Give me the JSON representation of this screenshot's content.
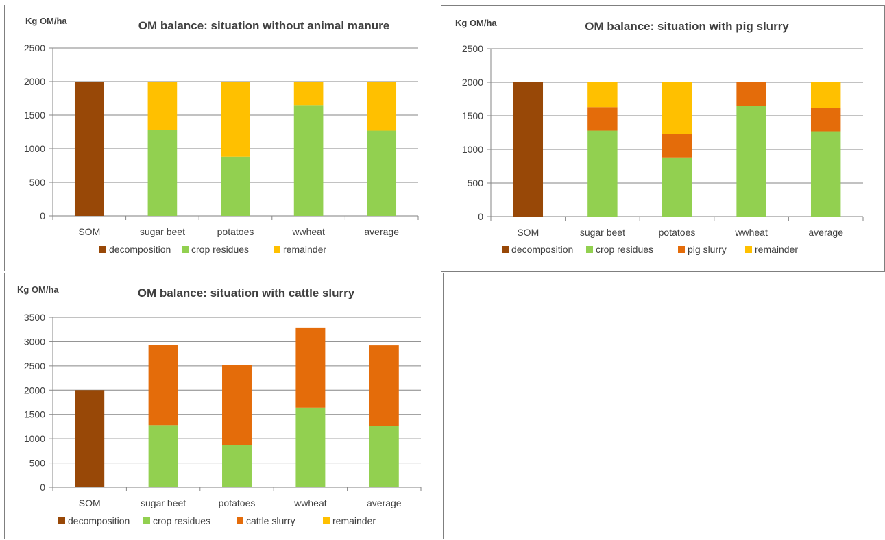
{
  "colors": {
    "decomposition": "#984807",
    "crop residues": "#92d050",
    "pig slurry": "#e46c0a",
    "cattle slurry": "#e46c0a",
    "remainder": "#ffc000"
  },
  "chart_data": [
    {
      "type": "bar",
      "stacked": true,
      "title": "OM balance: situation without animal manure",
      "ylabel": "Kg OM/ha",
      "categories": [
        "SOM",
        "sugar beet",
        "potatoes",
        "wwheat",
        "average"
      ],
      "ylim": [
        0,
        2500
      ],
      "yticks": [
        0,
        500,
        1000,
        1500,
        2000,
        2500
      ],
      "grid": true,
      "legend": "bottom",
      "series": [
        {
          "name": "decomposition",
          "values": [
            2000,
            0,
            0,
            0,
            0
          ]
        },
        {
          "name": "crop residues",
          "values": [
            0,
            1280,
            880,
            1650,
            1270
          ]
        },
        {
          "name": "remainder",
          "values": [
            0,
            720,
            1120,
            350,
            730
          ]
        }
      ]
    },
    {
      "type": "bar",
      "stacked": true,
      "title": "OM balance: situation with pig slurry",
      "ylabel": "Kg OM/ha",
      "categories": [
        "SOM",
        "sugar beet",
        "potatoes",
        "wwheat",
        "average"
      ],
      "ylim": [
        0,
        2500
      ],
      "yticks": [
        0,
        500,
        1000,
        1500,
        2000,
        2500
      ],
      "grid": true,
      "legend": "bottom",
      "series": [
        {
          "name": "decomposition",
          "values": [
            2000,
            0,
            0,
            0,
            0
          ]
        },
        {
          "name": "crop residues",
          "values": [
            0,
            1280,
            880,
            1650,
            1270
          ]
        },
        {
          "name": "pig slurry",
          "values": [
            0,
            350,
            350,
            350,
            345
          ]
        },
        {
          "name": "remainder",
          "values": [
            0,
            370,
            770,
            0,
            385
          ]
        }
      ]
    },
    {
      "type": "bar",
      "stacked": true,
      "title": "OM balance: situation with cattle slurry",
      "ylabel": "Kg OM/ha",
      "categories": [
        "SOM",
        "sugar beet",
        "potatoes",
        "wwheat",
        "average"
      ],
      "ylim": [
        0,
        3500
      ],
      "yticks": [
        0,
        500,
        1000,
        1500,
        2000,
        2500,
        3000,
        3500
      ],
      "grid": true,
      "legend": "bottom",
      "series": [
        {
          "name": "decomposition",
          "values": [
            2000,
            0,
            0,
            0,
            0
          ]
        },
        {
          "name": "crop residues",
          "values": [
            0,
            1280,
            870,
            1640,
            1270
          ]
        },
        {
          "name": "cattle slurry",
          "values": [
            0,
            1650,
            1650,
            1650,
            1650
          ]
        },
        {
          "name": "remainder",
          "values": [
            0,
            0,
            0,
            0,
            0
          ]
        }
      ]
    }
  ]
}
